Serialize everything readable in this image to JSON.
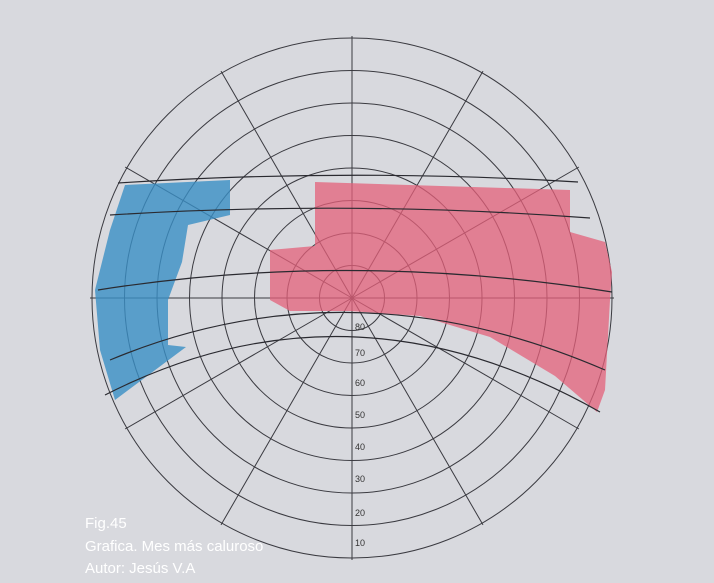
{
  "caption": {
    "figure": "Fig.45",
    "title": "Grafica. Mes más caluroso",
    "author": "Autor: Jesús V.A"
  },
  "diagram": {
    "altitude_labels": [
      "80",
      "70",
      "60",
      "50",
      "40",
      "30",
      "20",
      "10"
    ]
  }
}
